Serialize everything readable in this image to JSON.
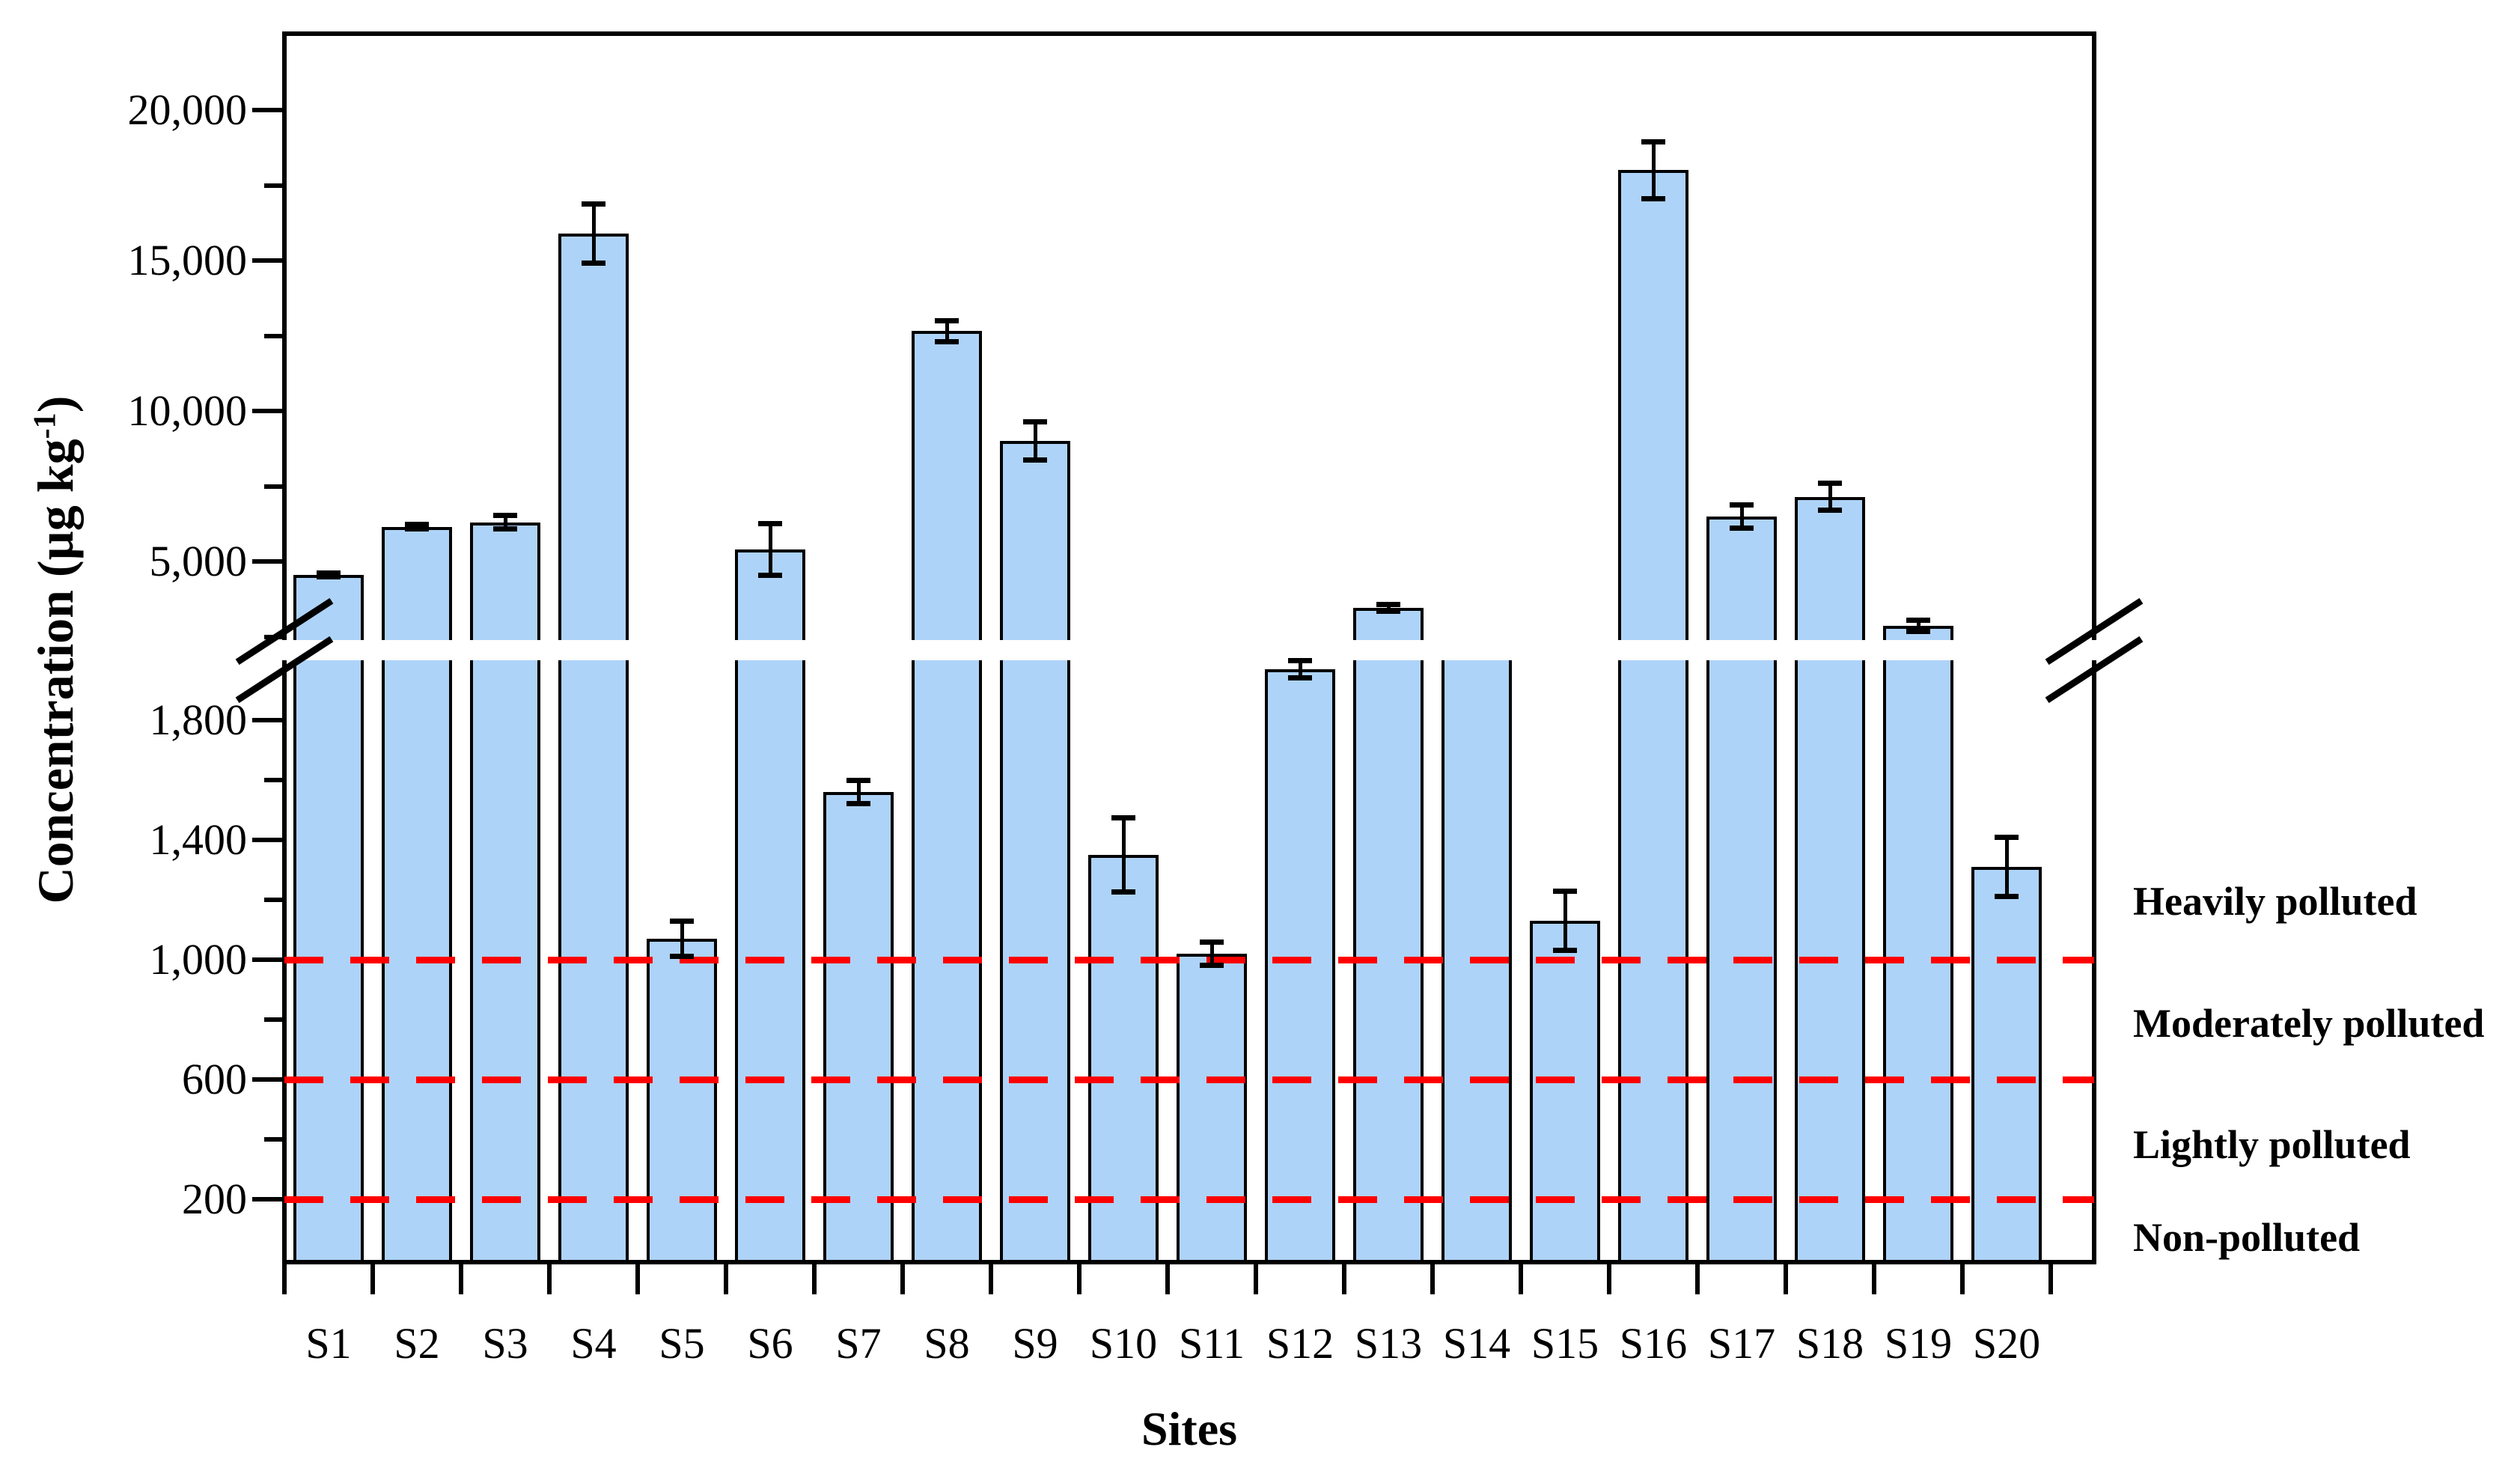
{
  "chart_data": {
    "type": "bar",
    "title": "",
    "xlabel": "Sites",
    "ylabel": "Concentration (µg kg-1)",
    "ylabel_pre": "Concentration (µg kg",
    "ylabel_sup": "-1",
    "ylabel_post": ")",
    "categories": [
      "S1",
      "S2",
      "S3",
      "S4",
      "S5",
      "S6",
      "S7",
      "S8",
      "S9",
      "S10",
      "S11",
      "S12",
      "S13",
      "S14",
      "S15",
      "S16",
      "S17",
      "S18",
      "S19",
      "S20"
    ],
    "series": [
      {
        "name": "Concentration",
        "values": [
          4550,
          6150,
          6300,
          15900,
          1070,
          5400,
          1560,
          12650,
          9000,
          1350,
          1020,
          1970,
          3450,
          2200,
          1130,
          18000,
          6500,
          7150,
          2850,
          1310
        ],
        "errors": [
          80,
          90,
          230,
          1000,
          60,
          870,
          40,
          350,
          650,
          125,
          40,
          30,
          120,
          0,
          100,
          950,
          400,
          450,
          200,
          100
        ],
        "top_hidden_by_break": [
          false,
          false,
          false,
          false,
          false,
          false,
          false,
          false,
          false,
          false,
          false,
          false,
          false,
          true,
          false,
          false,
          false,
          false,
          false,
          false
        ]
      }
    ],
    "bar_fill_color": "#AED3F9",
    "bar_outline_color": "#000000",
    "error_bar_color": "#000000",
    "axis_break": {
      "hidden_value_range": [
        2000,
        2400
      ]
    },
    "upper_axis": {
      "ticks": [
        {
          "value": 20000,
          "label": "20,000"
        },
        {
          "value": 15000,
          "label": "15,000"
        },
        {
          "value": 10000,
          "label": "10,000"
        },
        {
          "value": 5000,
          "label": "5,000"
        }
      ],
      "minor_ticks": [
        17500,
        12500,
        7500,
        2500
      ]
    },
    "lower_axis": {
      "ticks": [
        {
          "value": 1800,
          "label": "1,800"
        },
        {
          "value": 1400,
          "label": "1,400"
        },
        {
          "value": 1000,
          "label": "1,000"
        },
        {
          "value": 600,
          "label": "600"
        },
        {
          "value": 200,
          "label": "200"
        }
      ],
      "minor_ticks": [
        1600,
        1200,
        800,
        400
      ]
    },
    "threshold_lines": [
      {
        "value": 1000,
        "color": "#FF0000"
      },
      {
        "value": 600,
        "color": "#FF0000"
      },
      {
        "value": 200,
        "color": "#FF0000"
      }
    ],
    "zone_labels": [
      {
        "label": "Heavily polluted"
      },
      {
        "label": "Moderately polluted"
      },
      {
        "label": "Lightly polluted"
      },
      {
        "label": "Non-polluted"
      }
    ],
    "legend": "none",
    "grid": "off"
  }
}
